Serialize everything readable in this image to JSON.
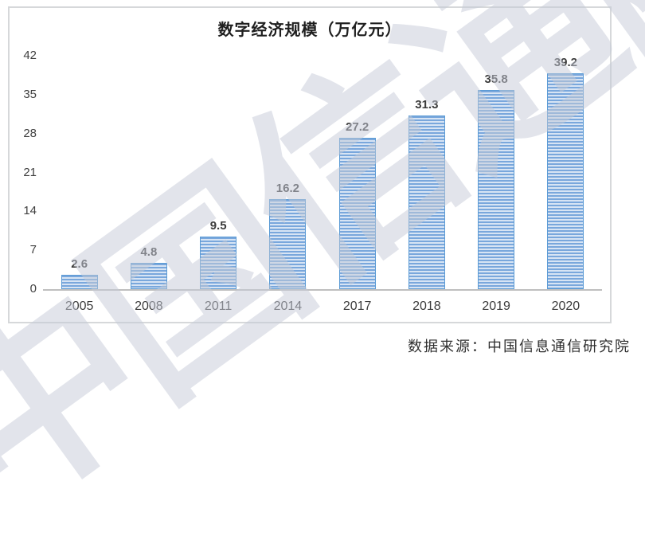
{
  "chart_data": {
    "type": "bar",
    "title": "数字经济规模（万亿元）",
    "categories": [
      "2005",
      "2008",
      "2011",
      "2014",
      "2017",
      "2018",
      "2019",
      "2020"
    ],
    "values": [
      2.6,
      4.8,
      9.5,
      16.2,
      27.2,
      31.3,
      35.8,
      39.2
    ],
    "data_labels": [
      "2.6",
      "4.8",
      "9.5",
      "16.2",
      "27.2",
      "31.3",
      "35.8",
      "39.2"
    ],
    "y_ticks": [
      0,
      7,
      14,
      21,
      28,
      35,
      42
    ],
    "ylim": [
      0,
      42
    ],
    "xlabel": "",
    "ylabel": "",
    "grid": false,
    "legend": "none",
    "bar_stripe_dark": "#79a7dc",
    "bar_stripe_light": "#d7e4f4",
    "bar_border": "#5b9bd5",
    "baseline_color": "#bfbfbf"
  },
  "watermark": {
    "text": "中国信通院",
    "color": "#c6cbd8"
  },
  "source_note": "数据来源：中国信息通信研究院"
}
